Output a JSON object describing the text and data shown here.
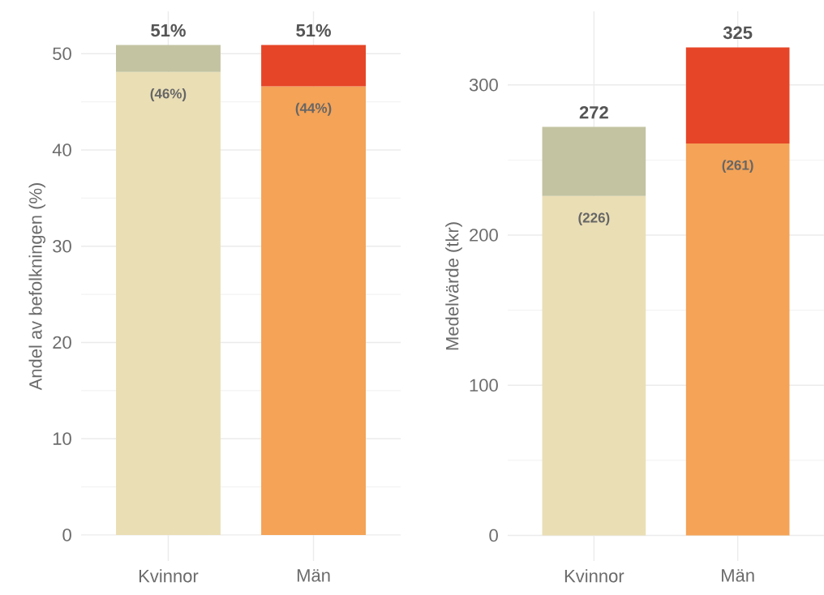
{
  "chart_data": [
    {
      "type": "bar",
      "stacked": true,
      "ylabel": "Andel av befolkningen (%)",
      "categories": [
        "Kvinnor",
        "Män"
      ],
      "series": [
        {
          "colors": [
            "#eadeb5",
            "#f4a357"
          ],
          "values": [
            48.1,
            46.6
          ]
        },
        {
          "colors": [
            "#c3c3a2",
            "#e64527"
          ],
          "values": [
            2.8,
            4.3
          ]
        }
      ],
      "annotations": [
        {
          "text": "(46%)",
          "x": "Kvinnor",
          "y": 48.1
        },
        {
          "text": "(44%)",
          "x": "Män",
          "y": 46.6
        }
      ],
      "totals": [
        "51%",
        "51%"
      ],
      "ylim": [
        -2.7,
        54.4
      ],
      "yticks": [
        0,
        {
          "value": 5,
          "label": null
        },
        10,
        {
          "value": 15,
          "label": null
        },
        20,
        {
          "value": 25,
          "label": null
        },
        30,
        {
          "value": 35,
          "label": null
        },
        40,
        {
          "value": 45,
          "label": null
        },
        50
      ],
      "grid": true
    },
    {
      "type": "bar",
      "stacked": true,
      "ylabel": "Medelvärde (tkr)",
      "categories": [
        "Kvinnor",
        "Män"
      ],
      "series": [
        {
          "colors": [
            "#eadeb5",
            "#f4a357"
          ],
          "values": [
            226,
            261
          ],
          "value_labels": [
            "(226)",
            "(261)"
          ]
        },
        {
          "colors": [
            "#c3c3a2",
            "#e64527"
          ],
          "values": [
            46,
            64
          ]
        }
      ],
      "totals": [
        "272",
        "325"
      ],
      "ylim": [
        -17,
        349
      ],
      "yticks": [
        0,
        {
          "value": 50,
          "label": null
        },
        100,
        {
          "value": 150,
          "label": null
        },
        200,
        {
          "value": 250,
          "label": null
        },
        300
      ],
      "grid": true
    }
  ]
}
